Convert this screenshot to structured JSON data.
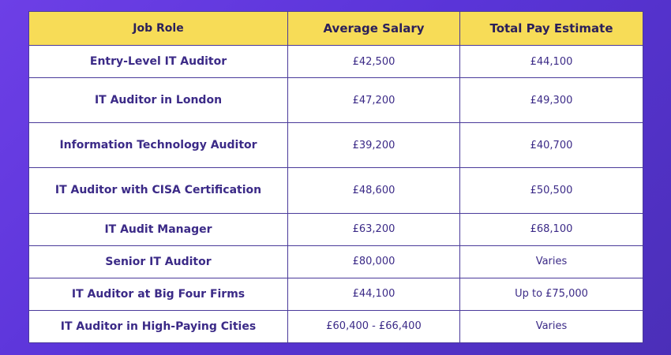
{
  "table": {
    "headers": [
      "Job Role",
      "Average Salary",
      "Total Pay Estimate"
    ],
    "rows": [
      {
        "role": "Entry-Level IT Auditor",
        "average": "£42,500",
        "total": "£44,100"
      },
      {
        "role": "IT Auditor in London",
        "average": "£47,200",
        "total": "£49,300"
      },
      {
        "role": "Information Technology Auditor",
        "average": "£39,200",
        "total": "£40,700"
      },
      {
        "role": "IT Auditor with CISA Certification",
        "average": "£48,600",
        "total": "£50,500"
      },
      {
        "role": "IT Audit Manager",
        "average": "£63,200",
        "total": "£68,100"
      },
      {
        "role": "Senior IT Auditor",
        "average": "£80,000",
        "total": "Varies"
      },
      {
        "role": "IT Auditor at Big Four Firms",
        "average": "£44,100",
        "total": "Up to £75,000"
      },
      {
        "role": "IT Auditor in High-Paying Cities",
        "average": "£60,400 - £66,400",
        "total": "Varies"
      }
    ]
  },
  "colors": {
    "header_bg": "#f7dc57",
    "text": "#3b2a87",
    "background_start": "#6d3fe6",
    "background_end": "#4b2fb8"
  }
}
